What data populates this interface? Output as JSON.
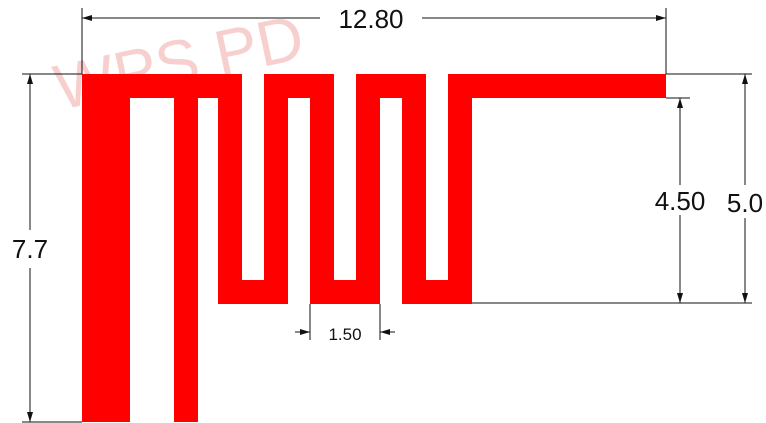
{
  "watermark": {
    "text": "WPS PD",
    "color": "#f3b6b6"
  },
  "antenna": {
    "trace_color": "#ff0000",
    "description_hidden": false
  },
  "dimensions": {
    "overall_width": "12.80",
    "overall_height": "7.7",
    "meander_height": "4.50",
    "right_height": "5.0",
    "slot_gap": "1.50"
  },
  "colors": {
    "trace": "#ff0000",
    "dimension_line": "#111111",
    "background": "#ffffff"
  }
}
